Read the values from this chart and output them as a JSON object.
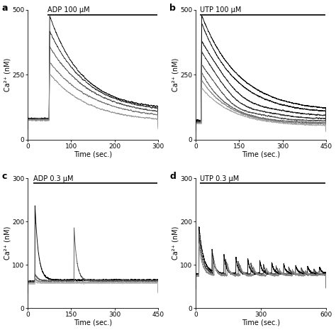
{
  "panels": [
    {
      "label": "a",
      "title": "ADP 100 μM",
      "xlim": [
        0,
        300
      ],
      "ylim": [
        0,
        500
      ],
      "xticks": [
        0,
        100,
        200,
        300
      ],
      "yticks": [
        0,
        250,
        500
      ],
      "xlabel": "Time (sec.)",
      "ylabel": "Ca²⁺ (nM)",
      "bar_start": 45,
      "bar_end": 298
    },
    {
      "label": "b",
      "title": "UTP 100 μM",
      "xlim": [
        0,
        450
      ],
      "ylim": [
        0,
        500
      ],
      "xticks": [
        0,
        150,
        300,
        450
      ],
      "yticks": [
        0,
        250,
        500
      ],
      "xlabel": "Time (sec.)",
      "ylabel": "Ca²⁺ (nM)",
      "bar_start": 15,
      "bar_end": 448
    },
    {
      "label": "c",
      "title": "ADP 0.3 μM",
      "xlim": [
        0,
        450
      ],
      "ylim": [
        0,
        300
      ],
      "xticks": [
        0,
        150,
        300,
        450
      ],
      "yticks": [
        0,
        100,
        200,
        300
      ],
      "xlabel": "Time (sec.)",
      "ylabel": "Ca²⁺ (nM)",
      "bar_start": 20,
      "bar_end": 448
    },
    {
      "label": "d",
      "title": "UTP 0.3 μM",
      "xlim": [
        0,
        600
      ],
      "ylim": [
        0,
        300
      ],
      "xticks": [
        0,
        300,
        600
      ],
      "yticks": [
        0,
        100,
        200,
        300
      ],
      "xlabel": "Time (sec.)",
      "ylabel": "Ca²⁺ (nM)",
      "bar_start": 20,
      "bar_end": 598
    }
  ]
}
